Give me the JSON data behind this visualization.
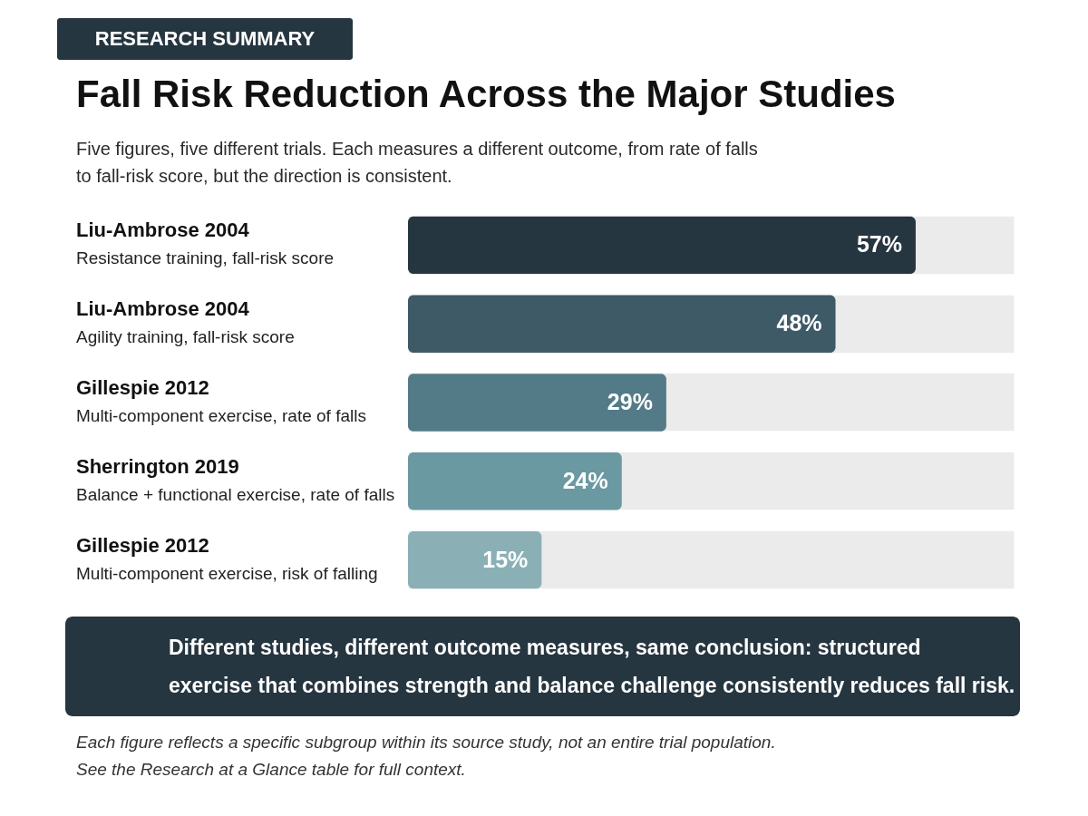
{
  "chart_data": {
    "type": "bar",
    "orientation": "horizontal",
    "title": "Fall Risk Reduction Across the Major Studies",
    "subtitle": "Five figures, five different trials. Each measures a different outcome, from rate of falls\nto fall-risk score, but the direction is consistent.",
    "categories": [
      "Liu-Ambrose 2004\nResistance training, fall-risk score",
      "Liu-Ambrose 2004\nAgility training, fall-risk score",
      "Gillespie 2012\nMulti-component exercise, rate of falls",
      "Sherrington 2019\nBalance + functional exercise, rate of falls",
      "Gillespie 2012\nMulti-component exercise, risk of falling"
    ],
    "values": [
      57,
      48,
      29,
      24,
      15
    ],
    "colors": [
      "#263640",
      "#3e5a66",
      "#537b87",
      "#6a99a2",
      "#8ab0b6"
    ],
    "value_labels": [
      "57%",
      "48%",
      "29%",
      "24%",
      "15%"
    ],
    "xlim": [
      0,
      68
    ],
    "grid": "y",
    "annotations": [
      "RESEARCH SUMMARY",
      "Different studies, different outcome measures, same conclusion: structured\nexercise that combines strength and balance challenge consistently reduces fall risk.",
      "Each figure reflects a specific subgroup within its source study, not an entire trial population.\nSee the Research at a Glance table for full context."
    ]
  }
}
